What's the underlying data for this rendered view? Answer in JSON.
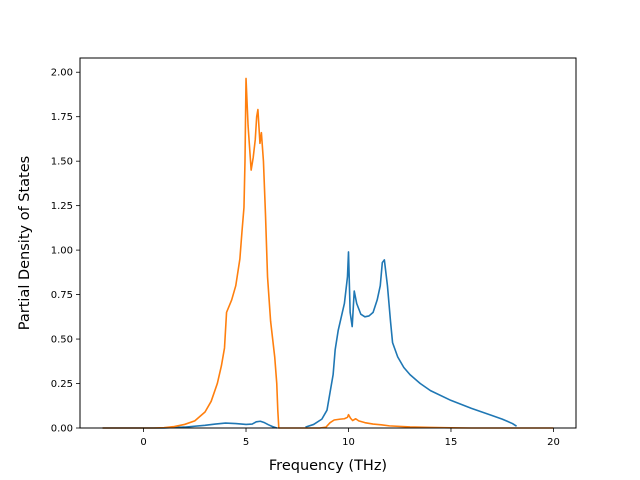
{
  "chart_data": {
    "type": "line",
    "title": "",
    "xlabel": "Frequency (THz)",
    "ylabel": "Partial Density of States",
    "xlim": [
      -3.1,
      21.1
    ],
    "ylim": [
      0,
      2.08
    ],
    "xticks": [
      0,
      5,
      10,
      15,
      20
    ],
    "xtick_labels": [
      "0",
      "5",
      "10",
      "15",
      "20"
    ],
    "yticks": [
      0,
      0.25,
      0.5,
      0.75,
      1.0,
      1.25,
      1.5,
      1.75,
      2.0
    ],
    "ytick_labels": [
      "0.00",
      "0.25",
      "0.50",
      "0.75",
      "1.00",
      "1.25",
      "1.50",
      "1.75",
      "2.00"
    ],
    "grid": false,
    "legend": "none",
    "series": [
      {
        "color": "#1f77b4",
        "points": [
          [
            -2.0,
            0
          ],
          [
            1.0,
            0
          ],
          [
            2.0,
            0.005
          ],
          [
            3.0,
            0.015
          ],
          [
            3.5,
            0.022
          ],
          [
            4.0,
            0.028
          ],
          [
            4.5,
            0.025
          ],
          [
            5.0,
            0.02
          ],
          [
            5.3,
            0.022
          ],
          [
            5.5,
            0.035
          ],
          [
            5.7,
            0.038
          ],
          [
            5.9,
            0.03
          ],
          [
            6.1,
            0.018
          ],
          [
            6.3,
            0.008
          ],
          [
            6.5,
            0.0
          ],
          [
            null,
            null
          ],
          [
            7.9,
            0.005
          ],
          [
            8.3,
            0.02
          ],
          [
            8.7,
            0.05
          ],
          [
            8.95,
            0.1
          ],
          [
            9.1,
            0.2
          ],
          [
            9.25,
            0.3
          ],
          [
            9.35,
            0.44
          ],
          [
            9.5,
            0.55
          ],
          [
            9.8,
            0.7
          ],
          [
            9.95,
            0.85
          ],
          [
            10.0,
            0.99
          ],
          [
            10.08,
            0.65
          ],
          [
            10.18,
            0.57
          ],
          [
            10.28,
            0.77
          ],
          [
            10.4,
            0.7
          ],
          [
            10.6,
            0.64
          ],
          [
            10.8,
            0.625
          ],
          [
            11.0,
            0.63
          ],
          [
            11.2,
            0.65
          ],
          [
            11.4,
            0.72
          ],
          [
            11.55,
            0.8
          ],
          [
            11.65,
            0.93
          ],
          [
            11.75,
            0.945
          ],
          [
            11.9,
            0.8
          ],
          [
            12.05,
            0.6
          ],
          [
            12.15,
            0.48
          ],
          [
            12.4,
            0.4
          ],
          [
            12.7,
            0.34
          ],
          [
            13.0,
            0.3
          ],
          [
            13.5,
            0.25
          ],
          [
            14.0,
            0.21
          ],
          [
            15.0,
            0.155
          ],
          [
            16.0,
            0.11
          ],
          [
            17.0,
            0.07
          ],
          [
            17.5,
            0.05
          ],
          [
            18.0,
            0.025
          ],
          [
            18.2,
            0.01
          ]
        ]
      },
      {
        "color": "#ff7f0e",
        "points": [
          [
            -2.0,
            0
          ],
          [
            0.5,
            0
          ],
          [
            1.0,
            0.002
          ],
          [
            1.5,
            0.008
          ],
          [
            2.0,
            0.02
          ],
          [
            2.5,
            0.04
          ],
          [
            3.0,
            0.09
          ],
          [
            3.3,
            0.15
          ],
          [
            3.6,
            0.25
          ],
          [
            3.8,
            0.35
          ],
          [
            3.95,
            0.45
          ],
          [
            4.05,
            0.65
          ],
          [
            4.3,
            0.72
          ],
          [
            4.5,
            0.8
          ],
          [
            4.7,
            0.95
          ],
          [
            4.8,
            1.1
          ],
          [
            4.9,
            1.24
          ],
          [
            4.95,
            1.5
          ],
          [
            5.0,
            1.965
          ],
          [
            5.1,
            1.7
          ],
          [
            5.25,
            1.45
          ],
          [
            5.35,
            1.52
          ],
          [
            5.45,
            1.62
          ],
          [
            5.52,
            1.75
          ],
          [
            5.58,
            1.79
          ],
          [
            5.68,
            1.6
          ],
          [
            5.75,
            1.66
          ],
          [
            5.85,
            1.5
          ],
          [
            5.95,
            1.2
          ],
          [
            6.05,
            0.85
          ],
          [
            6.2,
            0.6
          ],
          [
            6.4,
            0.4
          ],
          [
            6.5,
            0.25
          ],
          [
            6.55,
            0.1
          ],
          [
            6.6,
            0.0
          ],
          [
            8.6,
            0.0
          ],
          [
            8.9,
            0.005
          ],
          [
            9.1,
            0.03
          ],
          [
            9.3,
            0.045
          ],
          [
            9.6,
            0.05
          ],
          [
            9.8,
            0.052
          ],
          [
            9.95,
            0.06
          ],
          [
            10.0,
            0.075
          ],
          [
            10.1,
            0.055
          ],
          [
            10.2,
            0.042
          ],
          [
            10.35,
            0.052
          ],
          [
            10.5,
            0.04
          ],
          [
            10.8,
            0.03
          ],
          [
            11.2,
            0.022
          ],
          [
            11.6,
            0.018
          ],
          [
            12.0,
            0.012
          ],
          [
            13.0,
            0.006
          ],
          [
            14.0,
            0.003
          ],
          [
            15.0,
            0.001
          ],
          [
            16.0,
            0.0
          ],
          [
            20.0,
            0.0
          ]
        ]
      }
    ]
  }
}
